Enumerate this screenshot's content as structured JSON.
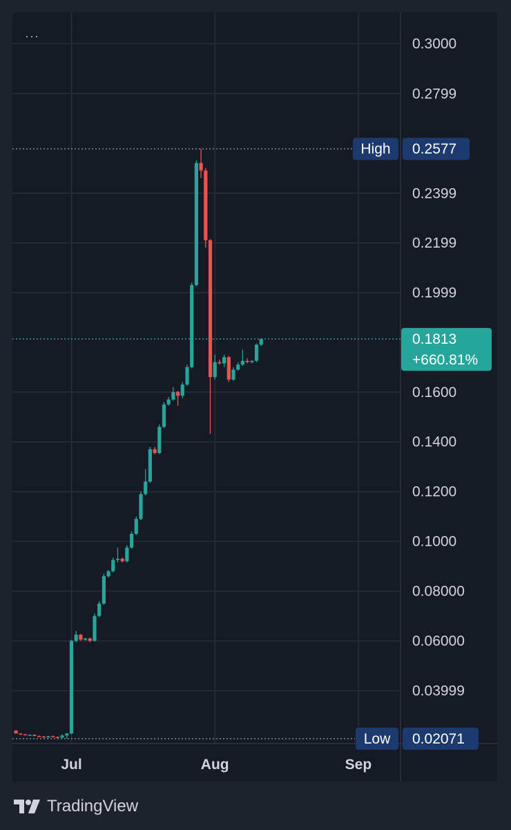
{
  "menu": {
    "label": "···"
  },
  "watermark": {
    "brand": "TradingView",
    "logo_icon": "tradingview-logo-icon"
  },
  "colors": {
    "up": "#26a69a",
    "down": "#ef5350",
    "background": "#161a25",
    "grid": "#2a2e39",
    "tag_blue": "#1c3a6e",
    "text": "#d1d4dc"
  },
  "chart_data": {
    "type": "candlestick",
    "title": "",
    "x_axis": {
      "ticks": [
        {
          "label": "Jul",
          "x": 0
        },
        {
          "label": "Aug",
          "x": 31
        },
        {
          "label": "Sep",
          "x": 62
        }
      ]
    },
    "y_axis": {
      "position": "right",
      "ylim": [
        0.0196,
        0.3125
      ],
      "ticks": [
        {
          "label": "0.3000",
          "value": 0.3
        },
        {
          "label": "0.2799",
          "value": 0.2799
        },
        {
          "label": "0.2399",
          "value": 0.2399
        },
        {
          "label": "0.2199",
          "value": 0.2199
        },
        {
          "label": "0.1999",
          "value": 0.1999
        },
        {
          "label": "0.1600",
          "value": 0.16
        },
        {
          "label": "0.1400",
          "value": 0.14
        },
        {
          "label": "0.1200",
          "value": 0.12
        },
        {
          "label": "0.1000",
          "value": 0.1
        },
        {
          "label": "0.08000",
          "value": 0.08
        },
        {
          "label": "0.06000",
          "value": 0.06
        },
        {
          "label": "0.03999",
          "value": 0.03999
        }
      ]
    },
    "high": {
      "label": "High",
      "value_label": "0.2577",
      "value": 0.2577
    },
    "low": {
      "label": "Low",
      "value_label": "0.02071",
      "value": 0.02071
    },
    "last": {
      "price_label": "0.1813",
      "change_label": "+660.81%",
      "value": 0.1813
    },
    "candles": [
      {
        "x": -12,
        "o": 0.024,
        "h": 0.024,
        "l": 0.0228,
        "c": 0.0228
      },
      {
        "x": -11,
        "o": 0.0228,
        "h": 0.0229,
        "l": 0.0222,
        "c": 0.0225
      },
      {
        "x": -10,
        "o": 0.0225,
        "h": 0.0226,
        "l": 0.022,
        "c": 0.0222
      },
      {
        "x": -9,
        "o": 0.0222,
        "h": 0.0224,
        "l": 0.0219,
        "c": 0.0223
      },
      {
        "x": -8,
        "o": 0.0223,
        "h": 0.0224,
        "l": 0.0217,
        "c": 0.0218
      },
      {
        "x": -7,
        "o": 0.0218,
        "h": 0.022,
        "l": 0.0215,
        "c": 0.0216
      },
      {
        "x": -6,
        "o": 0.0216,
        "h": 0.0218,
        "l": 0.0212,
        "c": 0.0214
      },
      {
        "x": -5,
        "o": 0.0214,
        "h": 0.0218,
        "l": 0.0209,
        "c": 0.0217
      },
      {
        "x": -4,
        "o": 0.0217,
        "h": 0.022,
        "l": 0.0212,
        "c": 0.0214
      },
      {
        "x": -3,
        "o": 0.0214,
        "h": 0.0216,
        "l": 0.021,
        "c": 0.0212
      },
      {
        "x": -2,
        "o": 0.0212,
        "h": 0.0225,
        "l": 0.0209,
        "c": 0.022
      },
      {
        "x": -1,
        "o": 0.022,
        "h": 0.023,
        "l": 0.0207,
        "c": 0.0228
      },
      {
        "x": 0,
        "o": 0.0228,
        "h": 0.0605,
        "l": 0.0225,
        "c": 0.06
      },
      {
        "x": 1,
        "o": 0.06,
        "h": 0.064,
        "l": 0.0595,
        "c": 0.0625
      },
      {
        "x": 2,
        "o": 0.0625,
        "h": 0.0628,
        "l": 0.06,
        "c": 0.0605
      },
      {
        "x": 3,
        "o": 0.0605,
        "h": 0.0612,
        "l": 0.06,
        "c": 0.061
      },
      {
        "x": 4,
        "o": 0.061,
        "h": 0.0613,
        "l": 0.0595,
        "c": 0.06
      },
      {
        "x": 5,
        "o": 0.06,
        "h": 0.071,
        "l": 0.0598,
        "c": 0.07
      },
      {
        "x": 6,
        "o": 0.07,
        "h": 0.076,
        "l": 0.0695,
        "c": 0.075
      },
      {
        "x": 7,
        "o": 0.075,
        "h": 0.087,
        "l": 0.0745,
        "c": 0.086
      },
      {
        "x": 8,
        "o": 0.086,
        "h": 0.0885,
        "l": 0.0855,
        "c": 0.088
      },
      {
        "x": 9,
        "o": 0.088,
        "h": 0.0935,
        "l": 0.0875,
        "c": 0.0925
      },
      {
        "x": 10,
        "o": 0.0925,
        "h": 0.0975,
        "l": 0.0915,
        "c": 0.093
      },
      {
        "x": 11,
        "o": 0.093,
        "h": 0.0935,
        "l": 0.0915,
        "c": 0.092
      },
      {
        "x": 12,
        "o": 0.092,
        "h": 0.0985,
        "l": 0.0915,
        "c": 0.0975
      },
      {
        "x": 13,
        "o": 0.0975,
        "h": 0.104,
        "l": 0.097,
        "c": 0.103
      },
      {
        "x": 14,
        "o": 0.103,
        "h": 0.11,
        "l": 0.1025,
        "c": 0.109
      },
      {
        "x": 15,
        "o": 0.109,
        "h": 0.12,
        "l": 0.1085,
        "c": 0.119
      },
      {
        "x": 16,
        "o": 0.119,
        "h": 0.129,
        "l": 0.1185,
        "c": 0.124
      },
      {
        "x": 17,
        "o": 0.124,
        "h": 0.138,
        "l": 0.1235,
        "c": 0.137
      },
      {
        "x": 18,
        "o": 0.137,
        "h": 0.138,
        "l": 0.135,
        "c": 0.1355
      },
      {
        "x": 19,
        "o": 0.1355,
        "h": 0.147,
        "l": 0.135,
        "c": 0.146
      },
      {
        "x": 20,
        "o": 0.146,
        "h": 0.156,
        "l": 0.1455,
        "c": 0.155
      },
      {
        "x": 21,
        "o": 0.155,
        "h": 0.158,
        "l": 0.1545,
        "c": 0.157
      },
      {
        "x": 22,
        "o": 0.157,
        "h": 0.162,
        "l": 0.1565,
        "c": 0.16
      },
      {
        "x": 23,
        "o": 0.16,
        "h": 0.1605,
        "l": 0.1545,
        "c": 0.1585
      },
      {
        "x": 24,
        "o": 0.1585,
        "h": 0.164,
        "l": 0.1575,
        "c": 0.163
      },
      {
        "x": 25,
        "o": 0.163,
        "h": 0.171,
        "l": 0.1625,
        "c": 0.17
      },
      {
        "x": 26,
        "o": 0.17,
        "h": 0.204,
        "l": 0.1695,
        "c": 0.203
      },
      {
        "x": 27,
        "o": 0.203,
        "h": 0.253,
        "l": 0.2025,
        "c": 0.252
      },
      {
        "x": 28,
        "o": 0.252,
        "h": 0.2577,
        "l": 0.246,
        "c": 0.249
      },
      {
        "x": 29,
        "o": 0.249,
        "h": 0.25,
        "l": 0.218,
        "c": 0.221
      },
      {
        "x": 30,
        "o": 0.221,
        "h": 0.2215,
        "l": 0.1432,
        "c": 0.166
      },
      {
        "x": 31,
        "o": 0.166,
        "h": 0.175,
        "l": 0.165,
        "c": 0.172
      },
      {
        "x": 32,
        "o": 0.172,
        "h": 0.173,
        "l": 0.171,
        "c": 0.1715
      },
      {
        "x": 33,
        "o": 0.1715,
        "h": 0.175,
        "l": 0.17,
        "c": 0.174
      },
      {
        "x": 34,
        "o": 0.174,
        "h": 0.1745,
        "l": 0.164,
        "c": 0.165
      },
      {
        "x": 35,
        "o": 0.165,
        "h": 0.17,
        "l": 0.1645,
        "c": 0.169
      },
      {
        "x": 36,
        "o": 0.169,
        "h": 0.172,
        "l": 0.1685,
        "c": 0.171
      },
      {
        "x": 37,
        "o": 0.171,
        "h": 0.177,
        "l": 0.1705,
        "c": 0.1725
      },
      {
        "x": 38,
        "o": 0.1725,
        "h": 0.1735,
        "l": 0.1715,
        "c": 0.172
      },
      {
        "x": 39,
        "o": 0.172,
        "h": 0.1728,
        "l": 0.1715,
        "c": 0.1725
      },
      {
        "x": 40,
        "o": 0.1725,
        "h": 0.1795,
        "l": 0.172,
        "c": 0.179
      },
      {
        "x": 41,
        "o": 0.179,
        "h": 0.1815,
        "l": 0.1785,
        "c": 0.1813
      }
    ]
  }
}
